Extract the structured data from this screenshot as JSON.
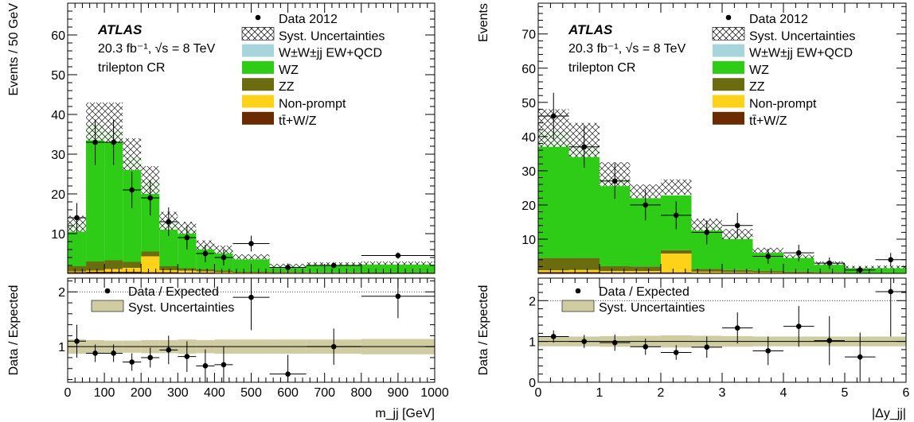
{
  "colors": {
    "data": "#000000",
    "wz": "#2ecc17",
    "zz": "#6b6b10",
    "nonprompt": "#ffd21a",
    "ttv": "#6b2a00",
    "wwjj": "#a6d6dc",
    "syst_ratio": "#cfcca2"
  },
  "chart_data": [
    {
      "type": "bar",
      "stacked": true,
      "atlas_label": "ATLAS",
      "lumi_label": "20.3 fb⁻¹, √s = 8 TeV",
      "region_label": "trilepton CR",
      "xlabel": "m_jj [GeV]",
      "ylabel": "Events / 50 GeV",
      "xlim": [
        0,
        1000
      ],
      "ylim": [
        0,
        68
      ],
      "yticks": [
        10,
        20,
        30,
        40,
        50,
        60
      ],
      "xticks": [
        0,
        100,
        200,
        300,
        400,
        500,
        600,
        700,
        800,
        900,
        1000
      ],
      "bin_edges": [
        0,
        50,
        100,
        150,
        200,
        250,
        300,
        350,
        400,
        450,
        550,
        650,
        800,
        1000
      ],
      "series": [
        {
          "name": "tt̄+W/Z",
          "values": [
            0.3,
            0.4,
            0.4,
            0.4,
            0.3,
            0.3,
            0.2,
            0.2,
            0.1,
            0.1,
            0.05,
            0.05,
            0.05
          ]
        },
        {
          "name": "Non-prompt",
          "values": [
            0.2,
            0.3,
            0.7,
            1.0,
            4.0,
            0.5,
            0.5,
            0.3,
            0.2,
            0.1,
            0.1,
            0.1,
            0.05
          ]
        },
        {
          "name": "ZZ",
          "values": [
            1.3,
            2.3,
            2.2,
            1.5,
            1.2,
            1.0,
            0.6,
            0.5,
            0.4,
            0.2,
            0.2,
            0.1,
            0.1
          ]
        },
        {
          "name": "W±W±jj EW+QCD",
          "values": [
            0,
            0,
            0,
            0,
            0,
            0,
            0,
            0,
            0,
            0,
            0,
            0,
            0
          ]
        },
        {
          "name": "WZ",
          "values": [
            11.2,
            34.5,
            32.6,
            26.2,
            18.0,
            11.0,
            10.0,
            6.0,
            5.3,
            3.7,
            1.6,
            2.2,
            2.3
          ]
        }
      ],
      "syst_band": [
        {
          "lo": 10.5,
          "hi": 14.5
        },
        {
          "lo": 33.5,
          "hi": 43.0
        },
        {
          "lo": 33.0,
          "hi": 43.0
        },
        {
          "lo": 26.0,
          "hi": 34.0
        },
        {
          "lo": 20.0,
          "hi": 27.0
        },
        {
          "lo": 11.0,
          "hi": 15.5
        },
        {
          "lo": 10.0,
          "hi": 13.0
        },
        {
          "lo": 6.0,
          "hi": 8.3
        },
        {
          "lo": 5.0,
          "hi": 7.0
        },
        {
          "lo": 3.5,
          "hi": 4.8
        },
        {
          "lo": 1.6,
          "hi": 2.4
        },
        {
          "lo": 2.0,
          "hi": 2.8
        },
        {
          "lo": 2.2,
          "hi": 3.0
        }
      ],
      "data_points": [
        {
          "x": 25,
          "y": 14,
          "err": 3.7
        },
        {
          "x": 75,
          "y": 33,
          "err": 5.7
        },
        {
          "x": 125,
          "y": 33,
          "err": 5.7
        },
        {
          "x": 175,
          "y": 21,
          "err": 4.6
        },
        {
          "x": 225,
          "y": 19,
          "err": 4.4
        },
        {
          "x": 275,
          "y": 13,
          "err": 3.6
        },
        {
          "x": 325,
          "y": 9,
          "err": 3.0
        },
        {
          "x": 375,
          "y": 5,
          "err": 2.2
        },
        {
          "x": 425,
          "y": 4,
          "err": 2.0
        },
        {
          "x": 500,
          "y": 7.5,
          "err": 2.0
        },
        {
          "x": 600,
          "y": 1.5,
          "err": 1.0
        },
        {
          "x": 725,
          "y": 2,
          "err": 0.7
        },
        {
          "x": 900,
          "y": 4.5,
          "err": 0.8
        }
      ],
      "legend": [
        "Data 2012",
        "Syst. Uncertainties",
        "W±W±jj EW+QCD",
        "WZ",
        "ZZ",
        "Non-prompt",
        "tt̄+W/Z"
      ],
      "ratio": {
        "ylabel": "Data / Expected",
        "ylim": [
          0.35,
          2.25
        ],
        "yticks": [
          1,
          2
        ],
        "legend": [
          "Data / Expected",
          "Syst. Uncertainties"
        ],
        "points": [
          {
            "x": 25,
            "y": 1.1,
            "err": 0.3
          },
          {
            "x": 75,
            "y": 0.88,
            "err": 0.16
          },
          {
            "x": 125,
            "y": 0.88,
            "err": 0.16
          },
          {
            "x": 175,
            "y": 0.72,
            "err": 0.16
          },
          {
            "x": 225,
            "y": 0.8,
            "err": 0.18
          },
          {
            "x": 275,
            "y": 0.94,
            "err": 0.26
          },
          {
            "x": 325,
            "y": 0.82,
            "err": 0.28
          },
          {
            "x": 375,
            "y": 0.65,
            "err": 0.3
          },
          {
            "x": 425,
            "y": 0.67,
            "err": 0.33
          },
          {
            "x": 500,
            "y": 1.9,
            "err": 0.6
          },
          {
            "x": 600,
            "y": 0.5,
            "err": 0.35
          },
          {
            "x": 725,
            "y": 1.0,
            "err": 0.33
          },
          {
            "x": 900,
            "y": 1.92,
            "err": 0.4
          }
        ],
        "band": [
          {
            "lo": 0.87,
            "hi": 1.13
          },
          {
            "lo": 0.88,
            "hi": 1.12
          },
          {
            "lo": 0.89,
            "hi": 1.11
          },
          {
            "lo": 0.89,
            "hi": 1.11
          },
          {
            "lo": 0.88,
            "hi": 1.12
          },
          {
            "lo": 0.88,
            "hi": 1.12
          },
          {
            "lo": 0.87,
            "hi": 1.13
          },
          {
            "lo": 0.88,
            "hi": 1.12
          },
          {
            "lo": 0.87,
            "hi": 1.13
          },
          {
            "lo": 0.87,
            "hi": 1.13
          },
          {
            "lo": 0.87,
            "hi": 1.13
          },
          {
            "lo": 0.87,
            "hi": 1.13
          },
          {
            "lo": 0.86,
            "hi": 1.14
          }
        ]
      }
    },
    {
      "type": "bar",
      "stacked": true,
      "atlas_label": "ATLAS",
      "lumi_label": "20.3 fb⁻¹, √s = 8 TeV",
      "region_label": "trilepton CR",
      "xlabel": "|Δy_jj|",
      "ylabel": "Events",
      "xlim": [
        0,
        6
      ],
      "ylim": [
        0,
        79
      ],
      "yticks": [
        10,
        20,
        30,
        40,
        50,
        60,
        70
      ],
      "xticks": [
        0,
        1,
        2,
        3,
        4,
        5,
        6
      ],
      "bin_edges": [
        0,
        0.5,
        1.0,
        1.5,
        2.0,
        2.5,
        3.0,
        3.5,
        4.0,
        4.5,
        5.0,
        5.5,
        6.0
      ],
      "series": [
        {
          "name": "tt̄+W/Z",
          "values": [
            0.4,
            0.4,
            0.3,
            0.3,
            0.3,
            0.2,
            0.2,
            0.1,
            0.1,
            0.1,
            0.05,
            0.05
          ]
        },
        {
          "name": "Non-prompt",
          "values": [
            0.5,
            0.6,
            0.4,
            0.4,
            5.5,
            0.3,
            0.2,
            0.2,
            0.1,
            0.1,
            0.05,
            0.05
          ]
        },
        {
          "name": "ZZ",
          "values": [
            3.6,
            3.5,
            1.4,
            1.3,
            1.0,
            0.8,
            0.6,
            0.4,
            0.3,
            0.2,
            0.1,
            0.1
          ]
        },
        {
          "name": "W±W±jj EW+QCD",
          "values": [
            0,
            0,
            0,
            0,
            0,
            0,
            0,
            0,
            0,
            0,
            0,
            0
          ]
        },
        {
          "name": "WZ",
          "values": [
            37.0,
            33.0,
            25.5,
            20.0,
            16.0,
            12.5,
            10.0,
            5.5,
            4.5,
            2.7,
            1.7,
            1.8
          ]
        }
      ],
      "syst_band": [
        {
          "lo": 37.0,
          "hi": 48.0
        },
        {
          "lo": 34.0,
          "hi": 44.0
        },
        {
          "lo": 25.5,
          "hi": 32.5
        },
        {
          "lo": 22.0,
          "hi": 26.0
        },
        {
          "lo": 23.0,
          "hi": 27.5
        },
        {
          "lo": 12.5,
          "hi": 16.0
        },
        {
          "lo": 10.0,
          "hi": 13.0
        },
        {
          "lo": 6.0,
          "hi": 7.5
        },
        {
          "lo": 4.5,
          "hi": 5.5
        },
        {
          "lo": 2.5,
          "hi": 3.5
        },
        {
          "lo": 1.5,
          "hi": 2.2
        },
        {
          "lo": 1.5,
          "hi": 2.3
        }
      ],
      "data_points": [
        {
          "x": 0.25,
          "y": 46,
          "err": 6.8
        },
        {
          "x": 0.75,
          "y": 37,
          "err": 6.1
        },
        {
          "x": 1.25,
          "y": 27,
          "err": 5.2
        },
        {
          "x": 1.75,
          "y": 20,
          "err": 4.5
        },
        {
          "x": 2.25,
          "y": 17,
          "err": 4.1
        },
        {
          "x": 2.75,
          "y": 12,
          "err": 3.5
        },
        {
          "x": 3.25,
          "y": 14,
          "err": 3.7
        },
        {
          "x": 3.75,
          "y": 5,
          "err": 2.2
        },
        {
          "x": 4.25,
          "y": 6,
          "err": 2.4
        },
        {
          "x": 4.75,
          "y": 3,
          "err": 1.7
        },
        {
          "x": 5.25,
          "y": 1,
          "err": 1.0
        },
        {
          "x": 5.75,
          "y": 4,
          "err": 2.0
        }
      ],
      "legend": [
        "Data 2012",
        "Syst. Uncertainties",
        "W±W±jj EW+QCD",
        "WZ",
        "ZZ",
        "Non-prompt",
        "tt̄+W/Z"
      ],
      "ratio": {
        "ylabel": "Data / Expected",
        "ylim": [
          0,
          2.55
        ],
        "yticks": [
          0,
          1,
          2
        ],
        "legend": [
          "Data / Expected",
          "Syst. Uncertainties"
        ],
        "points": [
          {
            "x": 0.25,
            "y": 1.12,
            "err": 0.15
          },
          {
            "x": 0.75,
            "y": 1.0,
            "err": 0.16
          },
          {
            "x": 1.25,
            "y": 0.97,
            "err": 0.2
          },
          {
            "x": 1.75,
            "y": 0.87,
            "err": 0.2
          },
          {
            "x": 2.25,
            "y": 0.73,
            "err": 0.18
          },
          {
            "x": 2.75,
            "y": 0.86,
            "err": 0.26
          },
          {
            "x": 3.25,
            "y": 1.33,
            "err": 0.38
          },
          {
            "x": 3.75,
            "y": 0.77,
            "err": 0.35
          },
          {
            "x": 4.25,
            "y": 1.37,
            "err": 0.5
          },
          {
            "x": 4.75,
            "y": 1.02,
            "err": 0.6
          },
          {
            "x": 5.25,
            "y": 0.62,
            "err": 0.6
          },
          {
            "x": 5.75,
            "y": 2.22,
            "err": 1.1
          }
        ],
        "band": [
          {
            "lo": 0.88,
            "hi": 1.12
          },
          {
            "lo": 0.88,
            "hi": 1.12
          },
          {
            "lo": 0.87,
            "hi": 1.13
          },
          {
            "lo": 0.86,
            "hi": 1.14
          },
          {
            "lo": 0.85,
            "hi": 1.15
          },
          {
            "lo": 0.86,
            "hi": 1.14
          },
          {
            "lo": 0.87,
            "hi": 1.13
          },
          {
            "lo": 0.88,
            "hi": 1.12
          },
          {
            "lo": 0.88,
            "hi": 1.12
          },
          {
            "lo": 0.88,
            "hi": 1.12
          },
          {
            "lo": 0.88,
            "hi": 1.12
          },
          {
            "lo": 0.88,
            "hi": 1.12
          }
        ]
      }
    }
  ]
}
